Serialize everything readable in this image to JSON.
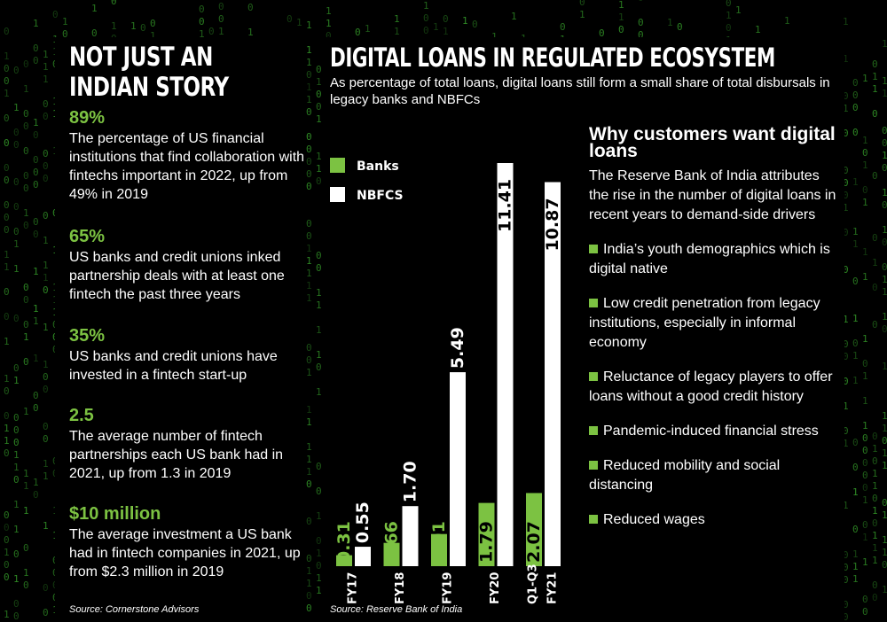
{
  "colors": {
    "green": "#7cc242",
    "white": "#ffffff",
    "background": "#000000",
    "matrix": "#2f8a25"
  },
  "left": {
    "title": "NOT JUST AN INDIAN STORY",
    "stats": [
      {
        "value": "89%",
        "text": "The percentage of US financial institutions that find collaboration with fintechs important in 2022, up from 49% in 2019"
      },
      {
        "value": "65%",
        "text": "US banks and credit unions inked partnership deals with at least one fintech the past three years"
      },
      {
        "value": "35%",
        "text": "US banks and credit unions have invested in a fintech start-up"
      },
      {
        "value": "2.5",
        "text": "The average number of fintech partnerships each US bank had in 2021, up from 1.3 in 2019"
      },
      {
        "value": "$10 million",
        "text": "The average investment a US bank had in fintech companies in 2021, up from $2.3 million in 2019"
      }
    ],
    "source": "Source: Cornerstone Advisors"
  },
  "right": {
    "title": "DIGITAL LOANS IN REGULATED ECOSYSTEM",
    "subtitle": "As percentage of total loans, digital loans still form a small share of total disbursals in legacy banks and NBFCs",
    "source": "Source: Reserve Bank of India"
  },
  "chart_data": {
    "type": "bar",
    "title": "",
    "xlabel": "",
    "ylabel": "",
    "categories": [
      "FY17",
      "FY18",
      "FY19",
      "FY20",
      "Q1-Q3 FY21"
    ],
    "series": [
      {
        "name": "Banks",
        "color": "#7cc242",
        "values": [
          0.31,
          0.66,
          0.91,
          1.79,
          2.07
        ],
        "labels": [
          "0.31",
          "0.66",
          "0.91",
          "1.79",
          "2.07"
        ]
      },
      {
        "name": "NBFCS",
        "color": "#ffffff",
        "values": [
          0.55,
          1.7,
          5.49,
          11.41,
          10.87
        ],
        "labels": [
          "0.55",
          "1.70",
          "5.49",
          "11.41",
          "10.87"
        ]
      }
    ],
    "ylim": [
      0,
      11.41
    ],
    "legend": "top-left",
    "grid": false
  },
  "why": {
    "title": "Why customers want digital loans",
    "intro": "The Reserve Bank of India attributes the rise in the number of digital loans in recent years to demand-side drivers",
    "items": [
      "India’s youth demographics which is digital native",
      "Low credit penetration from legacy institutions, especially in informal economy",
      "Reluctance of legacy players to offer loans without a good credit history",
      "Pandemic-induced financial stress",
      "Reduced mobility and social distancing",
      "Reduced wages"
    ]
  }
}
